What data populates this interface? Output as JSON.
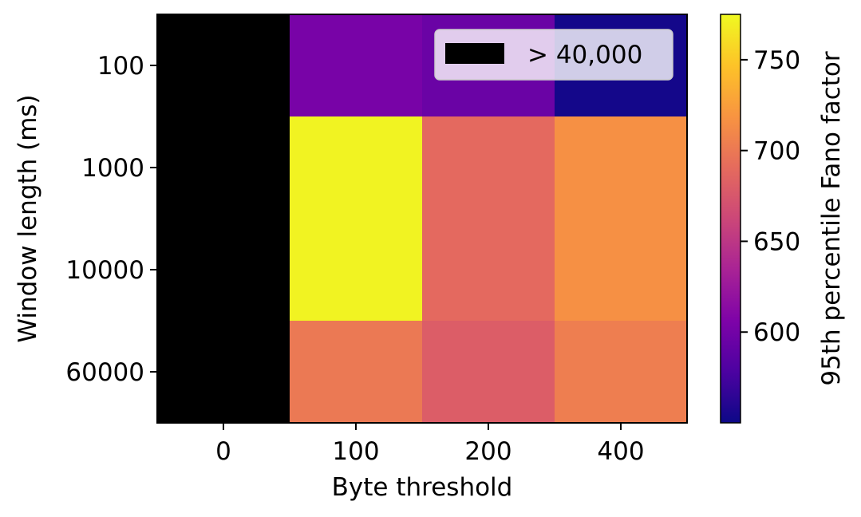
{
  "chart_data": {
    "type": "heatmap",
    "title": "",
    "xlabel": "Byte threshold",
    "ylabel": "Window length (ms)",
    "x_categories": [
      "0",
      "100",
      "200",
      "400"
    ],
    "y_categories": [
      "100",
      "1000",
      "10000",
      "60000"
    ],
    "values": [
      [
        null,
        603,
        595,
        553
      ],
      [
        null,
        772,
        689,
        716
      ],
      [
        null,
        772,
        689,
        716
      ],
      [
        null,
        700,
        680,
        704
      ]
    ],
    "overflow_color": "#000000",
    "colormap": "plasma",
    "colorbar": {
      "label": "95th percentile Fano factor",
      "min": 550,
      "max": 775,
      "ticks": [
        600,
        650,
        700,
        750
      ]
    },
    "legend": {
      "position": "top-right",
      "entries": [
        {
          "label": "> 40,000",
          "color": "#000000"
        }
      ]
    },
    "grid": false
  }
}
